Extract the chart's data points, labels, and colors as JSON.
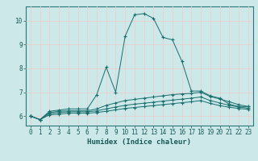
{
  "xlabel": "Humidex (Indice chaleur)",
  "bg_color": "#cce8e8",
  "grid_color": "#e8d0d0",
  "line_color": "#1a6e6e",
  "xlim": [
    -0.5,
    23.5
  ],
  "ylim": [
    5.6,
    10.6
  ],
  "xticks": [
    0,
    1,
    2,
    3,
    4,
    5,
    6,
    7,
    8,
    9,
    10,
    11,
    12,
    13,
    14,
    15,
    16,
    17,
    18,
    19,
    20,
    21,
    22,
    23
  ],
  "yticks": [
    6,
    7,
    8,
    9,
    10
  ],
  "line1_x": [
    0,
    1,
    2,
    3,
    4,
    5,
    6,
    7,
    8,
    9,
    10,
    11,
    12,
    13,
    14,
    15,
    16,
    17,
    18,
    19,
    20,
    21,
    22,
    23
  ],
  "line1_y": [
    6.0,
    5.85,
    6.2,
    6.25,
    6.3,
    6.3,
    6.3,
    6.9,
    8.05,
    7.0,
    9.35,
    10.25,
    10.3,
    10.1,
    9.3,
    9.2,
    8.3,
    7.05,
    7.05,
    6.85,
    6.75,
    6.5,
    6.4,
    6.4
  ],
  "line2_x": [
    0,
    1,
    2,
    3,
    4,
    5,
    6,
    7,
    8,
    9,
    10,
    11,
    12,
    13,
    14,
    15,
    16,
    17,
    18,
    19,
    20,
    21,
    22,
    23
  ],
  "line2_y": [
    6.0,
    5.85,
    6.15,
    6.2,
    6.22,
    6.22,
    6.22,
    6.3,
    6.45,
    6.55,
    6.65,
    6.7,
    6.75,
    6.8,
    6.85,
    6.9,
    6.93,
    6.95,
    7.0,
    6.82,
    6.72,
    6.6,
    6.48,
    6.4
  ],
  "line3_x": [
    0,
    1,
    2,
    3,
    4,
    5,
    6,
    7,
    8,
    9,
    10,
    11,
    12,
    13,
    14,
    15,
    16,
    17,
    18,
    19,
    20,
    21,
    22,
    23
  ],
  "line3_y": [
    6.0,
    5.85,
    6.1,
    6.15,
    6.18,
    6.18,
    6.18,
    6.22,
    6.3,
    6.38,
    6.45,
    6.5,
    6.54,
    6.58,
    6.63,
    6.67,
    6.71,
    6.75,
    6.8,
    6.65,
    6.55,
    6.45,
    6.38,
    6.33
  ],
  "line4_x": [
    0,
    1,
    2,
    3,
    4,
    5,
    6,
    7,
    8,
    9,
    10,
    11,
    12,
    13,
    14,
    15,
    16,
    17,
    18,
    19,
    20,
    21,
    22,
    23
  ],
  "line4_y": [
    6.0,
    5.85,
    6.05,
    6.08,
    6.12,
    6.12,
    6.12,
    6.15,
    6.2,
    6.26,
    6.32,
    6.36,
    6.4,
    6.44,
    6.48,
    6.52,
    6.56,
    6.6,
    6.65,
    6.53,
    6.44,
    6.37,
    6.32,
    6.28
  ],
  "tick_fontsize": 5.5,
  "label_fontsize": 6.5
}
